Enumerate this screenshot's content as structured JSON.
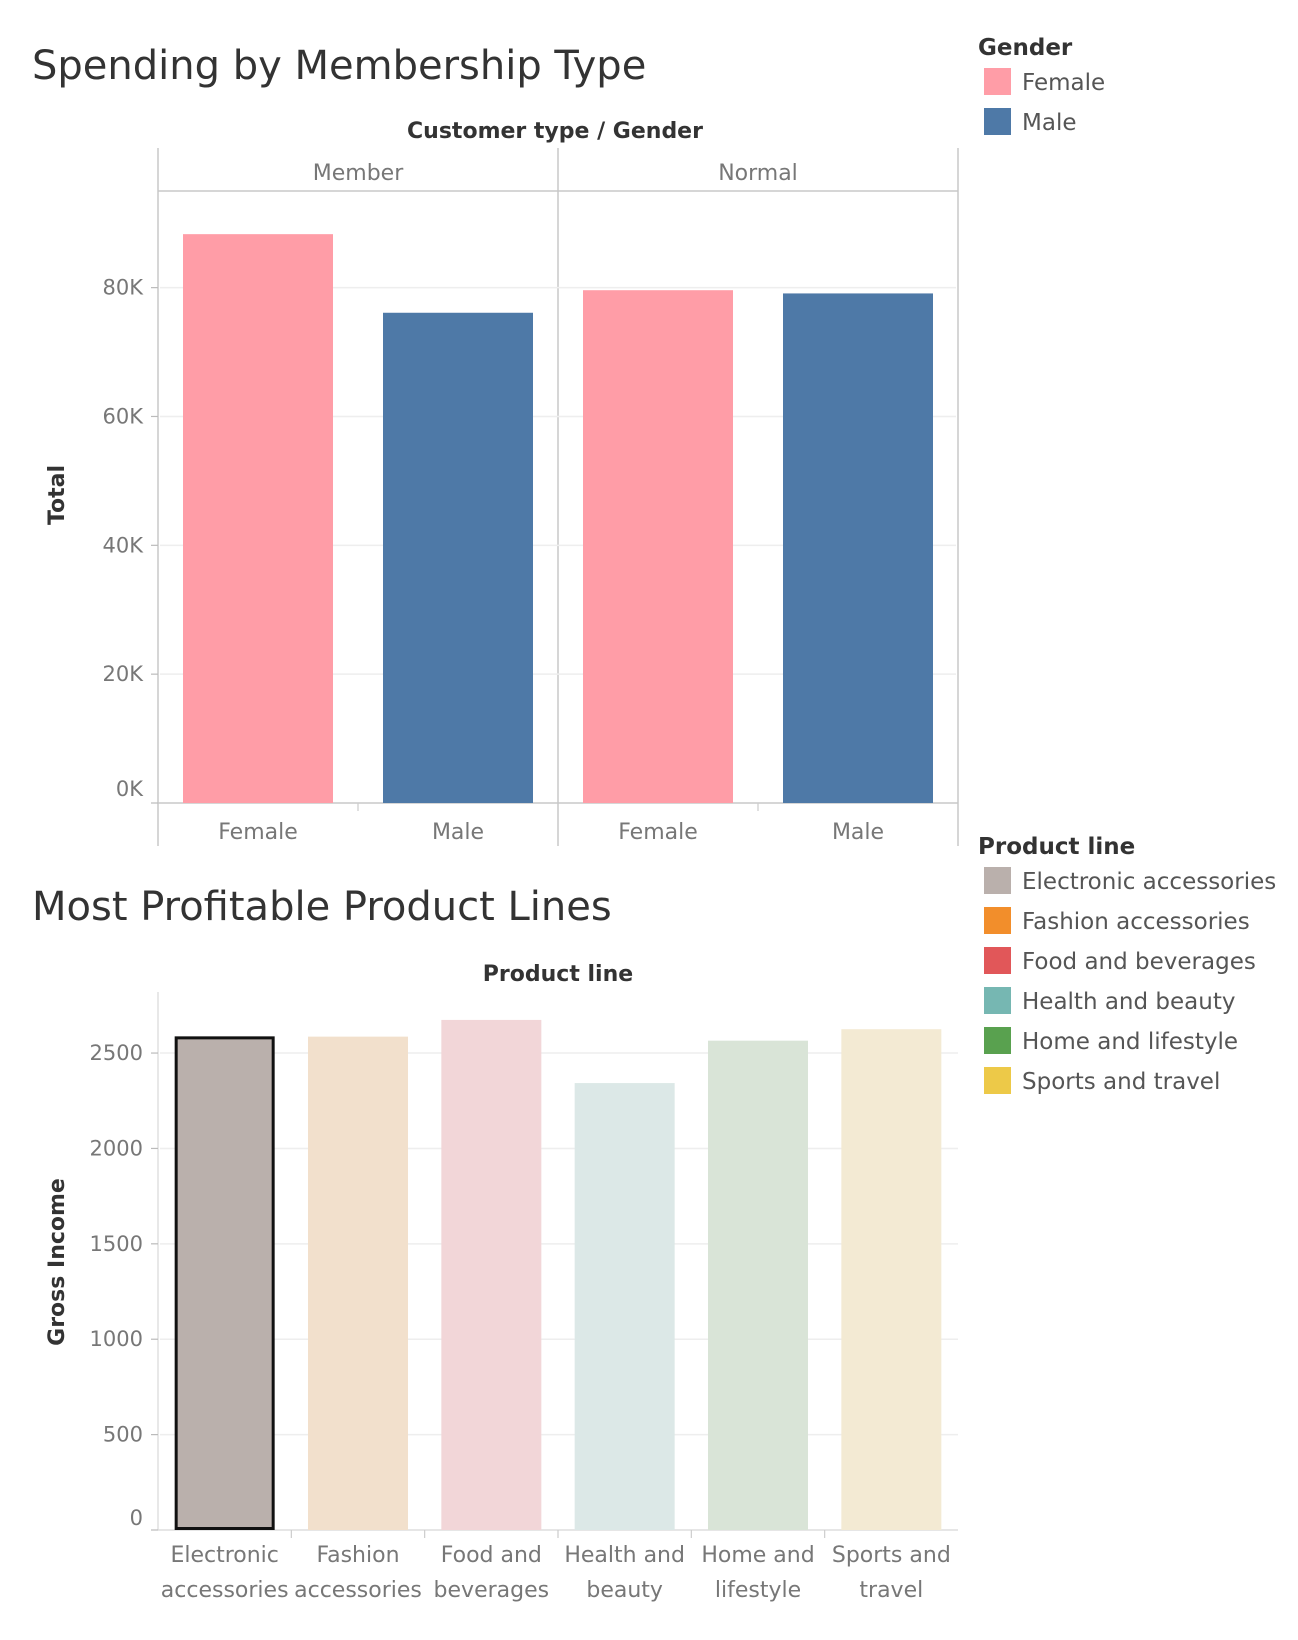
{
  "chart_data": [
    {
      "type": "bar",
      "title": "Spending by Membership Type",
      "column_header": "Customer type  /  Gender",
      "panes": [
        "Member",
        "Normal"
      ],
      "categories": [
        "Female",
        "Male",
        "Female",
        "Male"
      ],
      "values": [
        88300,
        76100,
        79600,
        79100
      ],
      "colors": [
        "#ff9da7",
        "#4e79a7",
        "#ff9da7",
        "#4e79a7"
      ],
      "ylabel": "Total",
      "ylim": [
        0,
        95000
      ],
      "yticks": [
        0,
        20000,
        40000,
        60000,
        80000
      ],
      "ytick_labels": [
        "0K",
        "20K",
        "40K",
        "60K",
        "80K"
      ],
      "grid": true,
      "legend": {
        "title": "Gender",
        "placement": "top-right",
        "items": [
          {
            "label": "Female",
            "color": "#ff9da7"
          },
          {
            "label": "Male",
            "color": "#4e79a7"
          }
        ]
      }
    },
    {
      "type": "bar",
      "title": "Most Profitable Product Lines",
      "column_header": "Product line",
      "categories": [
        "Electronic accessories",
        "Fashion accessories",
        "Food and beverages",
        "Health and beauty",
        "Home and lifestyle",
        "Sports and travel"
      ],
      "category_lines": [
        [
          "Electronic",
          "accessories"
        ],
        [
          "Fashion",
          "accessories"
        ],
        [
          "Food and",
          "beverages"
        ],
        [
          "Health and",
          "beauty"
        ],
        [
          "Home and",
          "lifestyle"
        ],
        [
          "Sports and",
          "travel"
        ]
      ],
      "values": [
        2587.5,
        2586.0,
        2673.6,
        2342.6,
        2564.9,
        2624.9
      ],
      "colors": [
        "#bab0ac",
        "#f2e0cc",
        "#f2d6d8",
        "#dce8e7",
        "#d9e4d7",
        "#f3ead3"
      ],
      "highlighted": "Electronic accessories",
      "ylabel": "Gross Income",
      "ylim": [
        0,
        2820
      ],
      "yticks": [
        0,
        500,
        1000,
        1500,
        2000,
        2500
      ],
      "ytick_labels": [
        "0",
        "500",
        "1000",
        "1500",
        "2000",
        "2500"
      ],
      "grid": true,
      "legend": {
        "title": "Product line",
        "placement": "right",
        "items": [
          {
            "label": "Electronic accessories",
            "color": "#bab0ac"
          },
          {
            "label": "Fashion accessories",
            "color": "#f28e2b"
          },
          {
            "label": "Food and beverages",
            "color": "#e15759"
          },
          {
            "label": "Health and beauty",
            "color": "#76b7b2"
          },
          {
            "label": "Home and lifestyle",
            "color": "#59a14f"
          },
          {
            "label": "Sports and travel",
            "color": "#edc948"
          }
        ]
      }
    }
  ]
}
